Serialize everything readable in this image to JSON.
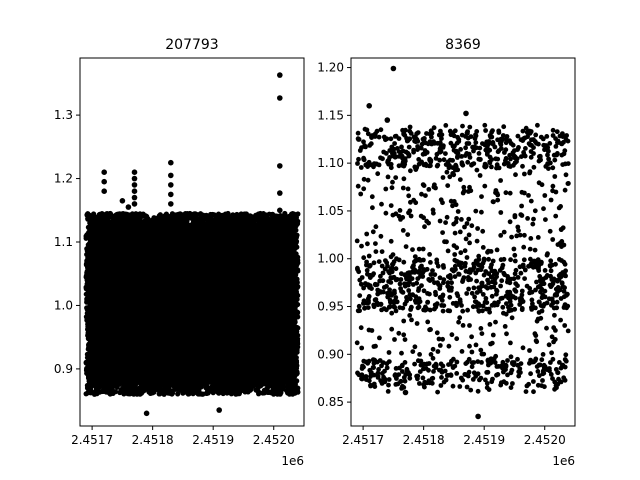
{
  "figure": {
    "background": "#ffffff",
    "marker_color": "#000000"
  },
  "chart_data": [
    {
      "type": "scatter",
      "title": "207793",
      "xlabel": "",
      "ylabel": "",
      "x_offset_label": "1e6",
      "xlim": [
        2.45168,
        2.45205
      ],
      "ylim": [
        0.81,
        1.39
      ],
      "grid": false,
      "x_ticks": [
        {
          "value": 2.4517,
          "label": "2.4517"
        },
        {
          "value": 2.4518,
          "label": "2.4518"
        },
        {
          "value": 2.4519,
          "label": "2.4519"
        },
        {
          "value": 2.452,
          "label": "2.4520"
        }
      ],
      "y_ticks": [
        {
          "value": 0.9,
          "label": "0.9"
        },
        {
          "value": 1.0,
          "label": "1.0"
        },
        {
          "value": 1.1,
          "label": "1.1"
        },
        {
          "value": 1.2,
          "label": "1.2"
        },
        {
          "value": 1.3,
          "label": "1.3"
        }
      ],
      "point_count": 207793,
      "series": [
        {
          "dense_band": {
            "x_range": [
              2.45169,
              2.45204
            ],
            "y_range": [
              0.86,
              1.145
            ]
          },
          "outliers": [
            {
              "x": 2.45172,
              "y": 1.21
            },
            {
              "x": 2.45172,
              "y": 1.195
            },
            {
              "x": 2.45172,
              "y": 1.18
            },
            {
              "x": 2.45175,
              "y": 1.165
            },
            {
              "x": 2.45176,
              "y": 1.155
            },
            {
              "x": 2.45177,
              "y": 1.21
            },
            {
              "x": 2.45177,
              "y": 1.2
            },
            {
              "x": 2.45177,
              "y": 1.19
            },
            {
              "x": 2.45177,
              "y": 1.18
            },
            {
              "x": 2.45177,
              "y": 1.17
            },
            {
              "x": 2.45177,
              "y": 1.16
            },
            {
              "x": 2.45183,
              "y": 1.225
            },
            {
              "x": 2.45183,
              "y": 1.205
            },
            {
              "x": 2.45183,
              "y": 1.19
            },
            {
              "x": 2.45183,
              "y": 1.175
            },
            {
              "x": 2.45183,
              "y": 1.16
            },
            {
              "x": 2.45201,
              "y": 1.363
            },
            {
              "x": 2.45201,
              "y": 1.327
            },
            {
              "x": 2.45201,
              "y": 1.22
            },
            {
              "x": 2.45201,
              "y": 1.177
            },
            {
              "x": 2.45201,
              "y": 1.15
            },
            {
              "x": 2.45191,
              "y": 0.835
            },
            {
              "x": 2.45179,
              "y": 0.83
            }
          ]
        }
      ]
    },
    {
      "type": "scatter",
      "title": "8369",
      "xlabel": "",
      "ylabel": "",
      "x_offset_label": "1e6",
      "xlim": [
        2.45168,
        2.45205
      ],
      "ylim": [
        0.825,
        1.21
      ],
      "grid": false,
      "x_ticks": [
        {
          "value": 2.4517,
          "label": "2.4517"
        },
        {
          "value": 2.4518,
          "label": "2.4518"
        },
        {
          "value": 2.4519,
          "label": "2.4519"
        },
        {
          "value": 2.452,
          "label": "2.4520"
        }
      ],
      "y_ticks": [
        {
          "value": 0.85,
          "label": "0.85"
        },
        {
          "value": 0.9,
          "label": "0.90"
        },
        {
          "value": 0.95,
          "label": "0.95"
        },
        {
          "value": 1.0,
          "label": "1.00"
        },
        {
          "value": 1.05,
          "label": "1.05"
        },
        {
          "value": 1.1,
          "label": "1.10"
        },
        {
          "value": 1.15,
          "label": "1.15"
        },
        {
          "value": 1.2,
          "label": "1.20"
        }
      ],
      "point_count": 8369,
      "series": [
        {
          "dense_band": {
            "x_range": [
              2.45169,
              2.45204
            ],
            "y_range": [
              0.86,
              1.14
            ]
          },
          "outliers": [
            {
              "x": 2.45175,
              "y": 1.199
            },
            {
              "x": 2.45171,
              "y": 1.16
            },
            {
              "x": 2.45174,
              "y": 1.145
            },
            {
              "x": 2.45187,
              "y": 1.152
            },
            {
              "x": 2.45189,
              "y": 0.835
            },
            {
              "x": 2.45177,
              "y": 0.86
            }
          ]
        }
      ]
    }
  ]
}
